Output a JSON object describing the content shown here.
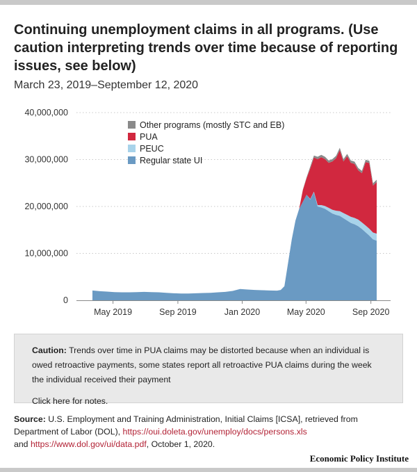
{
  "title": "Continuing unemployment claims in all programs. (Use caution interpreting trends over time because of reporting issues, see below)",
  "subtitle": "March 23, 2019–September 12, 2020",
  "chart_data": {
    "type": "area",
    "stacked": true,
    "y_ticks": [
      "40,000,000",
      "30,000,000",
      "20,000,000",
      "10,000,000",
      "0"
    ],
    "y_tick_values": [
      40000000,
      30000000,
      20000000,
      10000000,
      0
    ],
    "ylim": [
      0,
      40000000
    ],
    "x_ticks": [
      {
        "label": "May 2019",
        "date": "2019-05-01"
      },
      {
        "label": "Sep 2019",
        "date": "2019-09-01"
      },
      {
        "label": "Jan 2020",
        "date": "2020-01-01"
      },
      {
        "label": "May 2020",
        "date": "2020-05-01"
      },
      {
        "label": "Sep 2020",
        "date": "2020-09-01"
      }
    ],
    "xlim": [
      "2019-03-23",
      "2020-09-12"
    ],
    "grid": "horizontal dotted",
    "legend_position": "top-left",
    "x": [
      "2019-03-23",
      "2019-04-06",
      "2019-04-20",
      "2019-05-04",
      "2019-05-18",
      "2019-06-01",
      "2019-06-15",
      "2019-06-29",
      "2019-07-13",
      "2019-07-27",
      "2019-08-10",
      "2019-08-24",
      "2019-09-07",
      "2019-09-21",
      "2019-10-05",
      "2019-10-19",
      "2019-11-02",
      "2019-11-16",
      "2019-11-30",
      "2019-12-14",
      "2019-12-28",
      "2020-01-11",
      "2020-01-25",
      "2020-02-08",
      "2020-02-22",
      "2020-03-07",
      "2020-03-14",
      "2020-03-21",
      "2020-03-28",
      "2020-04-04",
      "2020-04-11",
      "2020-04-18",
      "2020-04-25",
      "2020-05-02",
      "2020-05-09",
      "2020-05-16",
      "2020-05-23",
      "2020-05-30",
      "2020-06-06",
      "2020-06-13",
      "2020-06-20",
      "2020-06-27",
      "2020-07-04",
      "2020-07-11",
      "2020-07-18",
      "2020-07-25",
      "2020-08-01",
      "2020-08-08",
      "2020-08-15",
      "2020-08-22",
      "2020-08-29",
      "2020-09-05",
      "2020-09-12"
    ],
    "series": [
      {
        "name": "Regular state UI",
        "color": "#6a9ac3",
        "values": [
          2100000,
          1950000,
          1850000,
          1750000,
          1700000,
          1700000,
          1750000,
          1800000,
          1750000,
          1700000,
          1600000,
          1500000,
          1450000,
          1450000,
          1500000,
          1550000,
          1600000,
          1700000,
          1800000,
          2000000,
          2400000,
          2300000,
          2200000,
          2150000,
          2100000,
          2050000,
          2200000,
          3000000,
          8000000,
          13000000,
          17000000,
          19500000,
          21000000,
          22500000,
          21500000,
          23000000,
          20000000,
          19800000,
          19500000,
          19000000,
          18500000,
          18200000,
          18000000,
          17500000,
          17000000,
          16500000,
          16200000,
          15800000,
          15200000,
          14500000,
          13800000,
          13000000,
          12700000
        ]
      },
      {
        "name": "PEUC",
        "color": "#a8d3ea",
        "values": [
          0,
          0,
          0,
          0,
          0,
          0,
          0,
          0,
          0,
          0,
          0,
          0,
          0,
          0,
          0,
          0,
          0,
          0,
          0,
          0,
          0,
          0,
          0,
          0,
          0,
          0,
          0,
          0,
          0,
          0,
          0,
          0,
          0,
          0,
          100000,
          150000,
          300000,
          500000,
          600000,
          700000,
          800000,
          900000,
          1000000,
          1100000,
          1200000,
          1300000,
          1350000,
          1400000,
          1400000,
          1450000,
          1450000,
          1450000,
          1500000
        ]
      },
      {
        "name": "PUA",
        "color": "#d1283f",
        "values": [
          0,
          0,
          0,
          0,
          0,
          0,
          0,
          0,
          0,
          0,
          0,
          0,
          0,
          0,
          0,
          0,
          0,
          0,
          0,
          0,
          0,
          0,
          0,
          0,
          0,
          0,
          0,
          0,
          0,
          0,
          0,
          0,
          2500000,
          3500000,
          6500000,
          7300000,
          9800000,
          10200000,
          10000000,
          9600000,
          10300000,
          11200000,
          13000000,
          11000000,
          12500000,
          11500000,
          11500000,
          10500000,
          10500000,
          13500000,
          14000000,
          10000000,
          11000000
        ]
      },
      {
        "name": "Other programs (mostly STC and EB)",
        "color": "#8a8a8a",
        "values": [
          0,
          0,
          0,
          0,
          0,
          0,
          0,
          0,
          0,
          0,
          0,
          0,
          0,
          0,
          0,
          0,
          0,
          0,
          0,
          0,
          0,
          0,
          0,
          0,
          0,
          0,
          0,
          0,
          0,
          0,
          0,
          0,
          100000,
          200000,
          400000,
          400000,
          500000,
          500000,
          500000,
          500000,
          500000,
          500000,
          500000,
          500000,
          500000,
          500000,
          500000,
          500000,
          500000,
          500000,
          500000,
          500000,
          500000
        ]
      }
    ]
  },
  "caution": {
    "label": "Caution:",
    "text": "Trends over time in PUA claims may be distorted because when an individual is owed retroactive payments, some states report all retroactive PUA claims during the week the individual received their payment",
    "notes_link": "Click here for notes."
  },
  "source": {
    "label": "Source:",
    "text1": "U.S. Employment and Training Administration, Initial Claims [ICSA], retrieved from Department of Labor (DOL),",
    "link1": "https://oui.doleta.gov/unemploy/docs/persons.xls",
    "text2": "and",
    "link2": "https://www.dol.gov/ui/data.pdf",
    "text3": ", October 1, 2020."
  },
  "brand": "Economic Policy Institute"
}
